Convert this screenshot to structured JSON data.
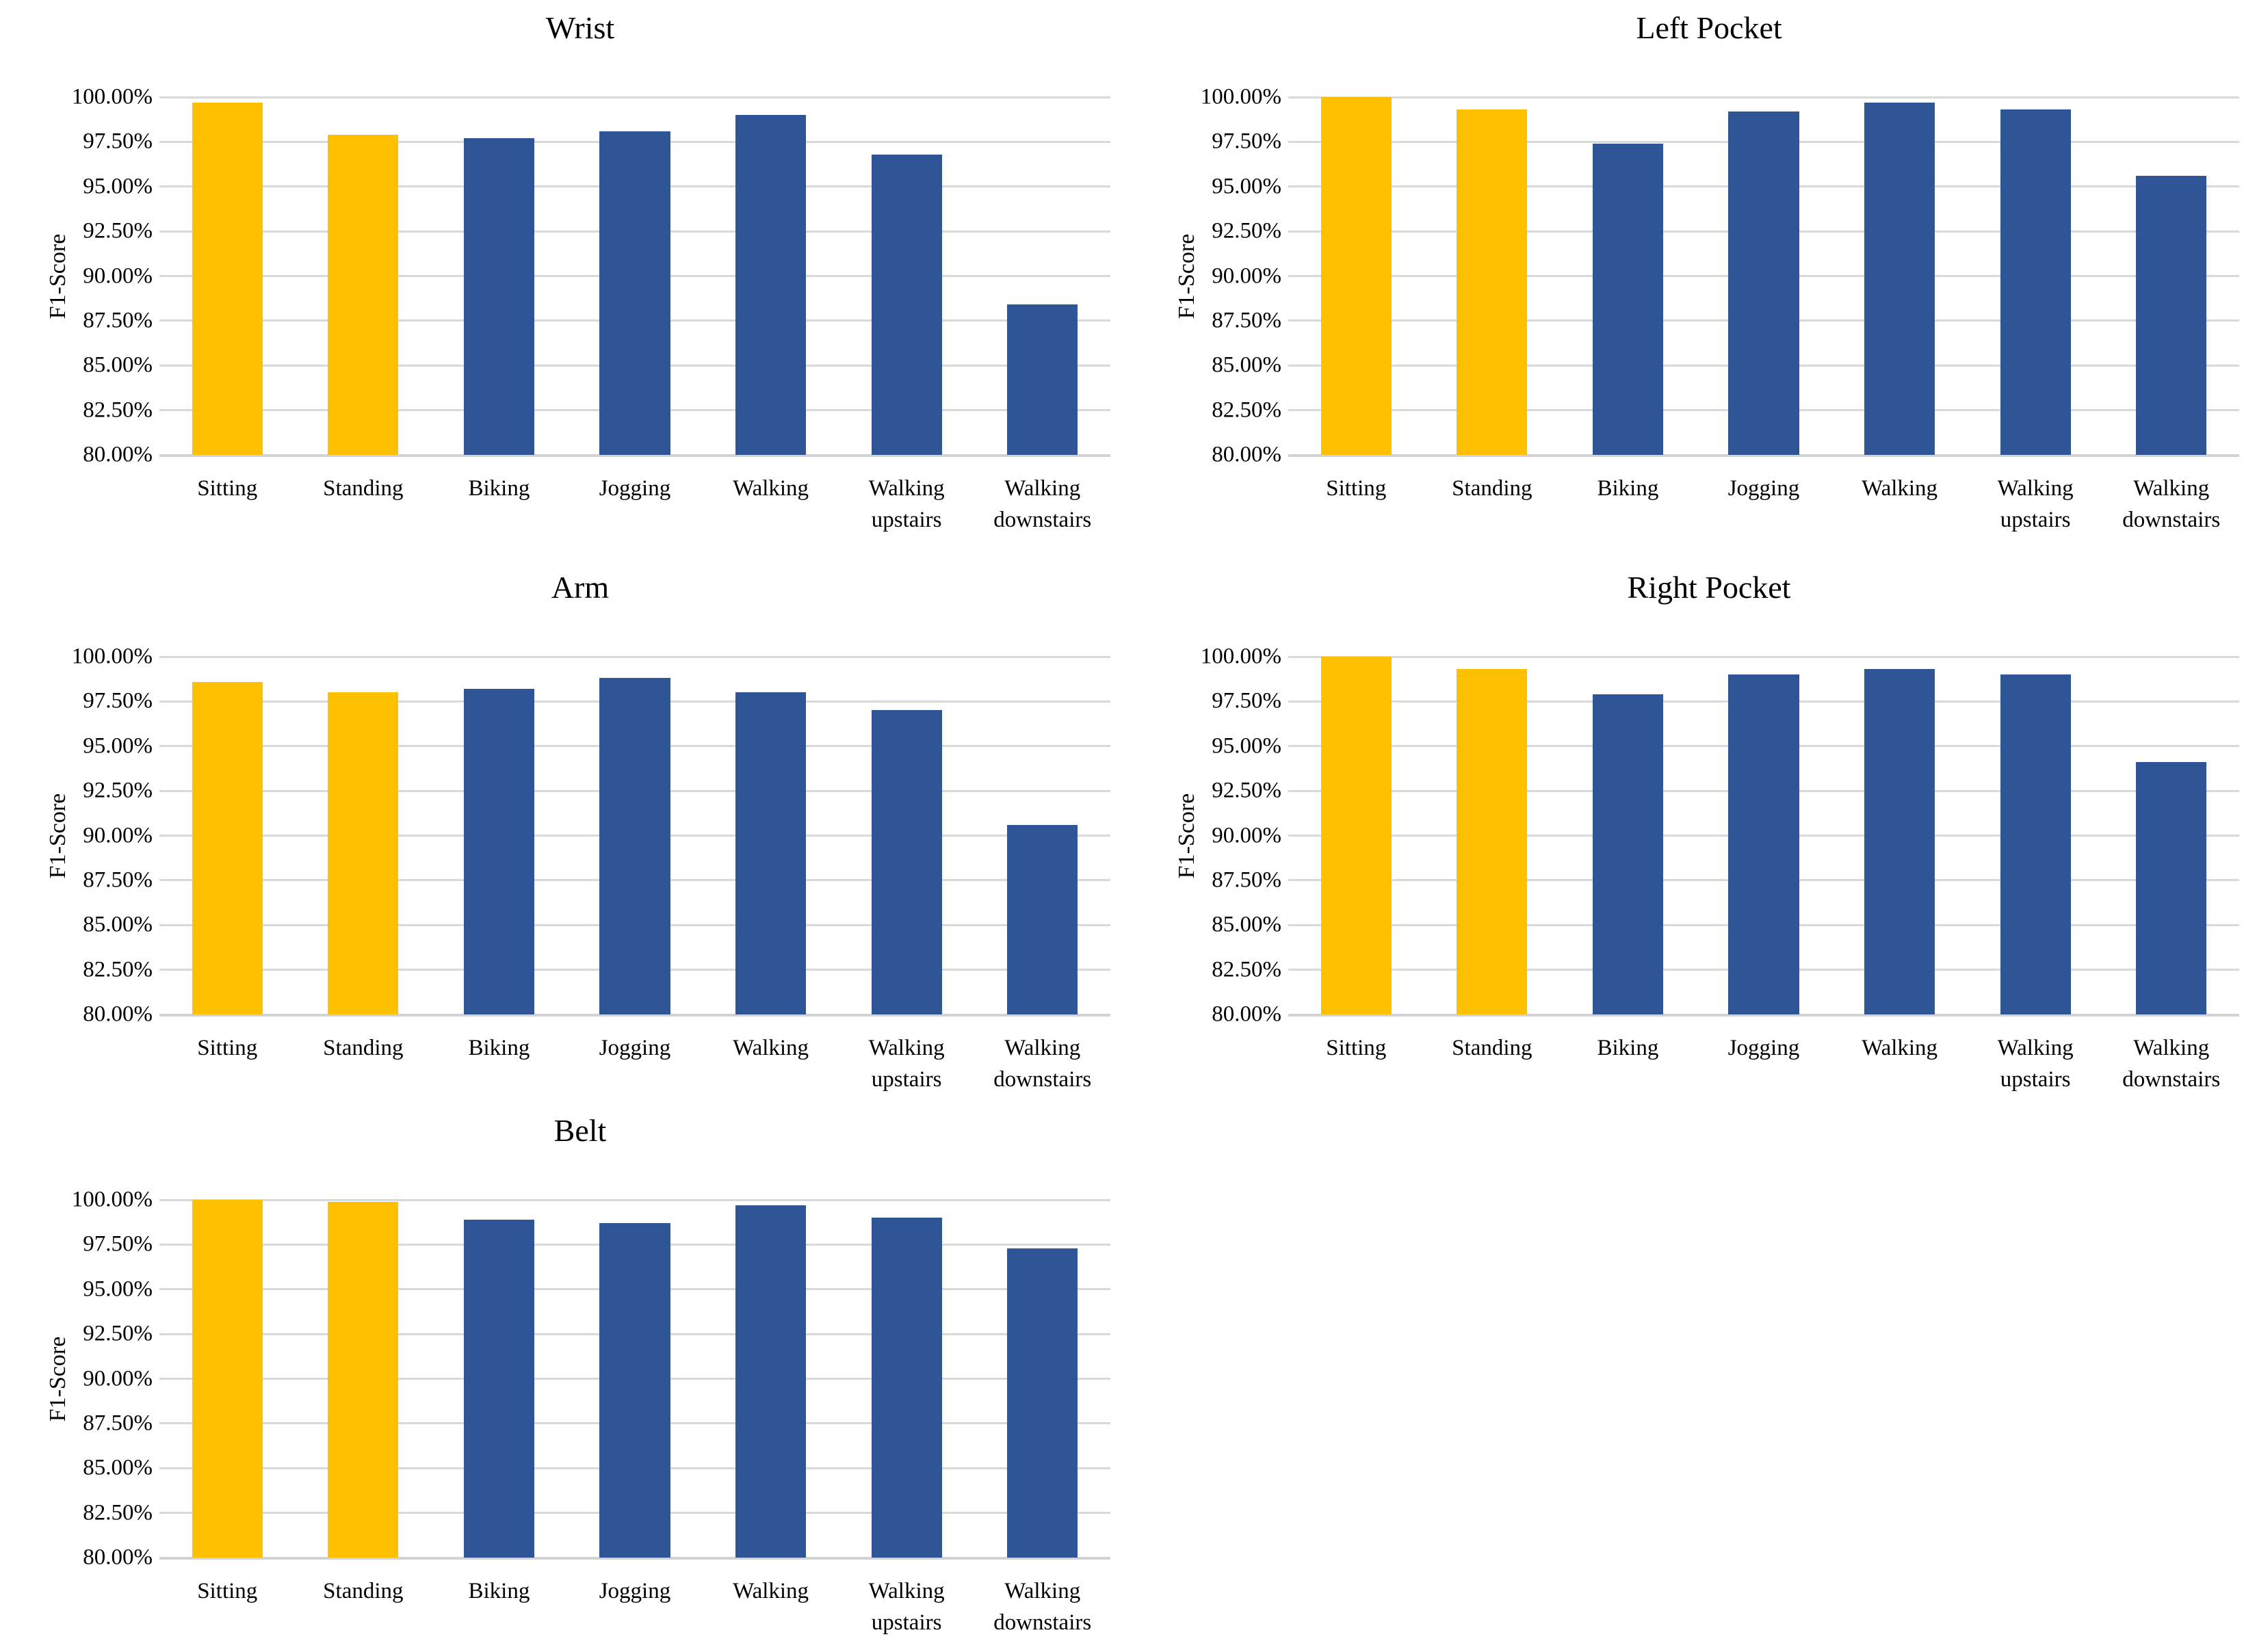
{
  "figure": {
    "description": "Five bar charts showing F1-Score per activity for different device placements",
    "background": "#FFFFFF",
    "grid_layout": {
      "rows": 3,
      "cols": 2,
      "empty_cells": [
        "row3-col2"
      ]
    }
  },
  "colors": {
    "highlight_bar": "#FFC000",
    "default_bar": "#2F5597",
    "gridline": "#D9D9D9",
    "axis_line": "#D3D3D3",
    "text": "#000000"
  },
  "axis": {
    "ylabel": "F1-Score",
    "tick_labels": [
      "100.00%",
      "97.50%",
      "95.00%",
      "92.50%",
      "90.00%",
      "87.50%",
      "85.00%",
      "82.50%",
      "80.00%"
    ]
  },
  "categories": [
    "Sitting",
    "Standing",
    "Biking",
    "Jogging",
    "Walking",
    "Walking upstairs",
    "Walking downstairs"
  ],
  "chart_data": [
    {
      "type": "bar",
      "title": "Wrist",
      "ylabel": "F1-Score",
      "ylim": [
        80,
        100
      ],
      "ytick_step": 2.5,
      "grid": true,
      "legend": "none",
      "categories": [
        "Sitting",
        "Standing",
        "Biking",
        "Jogging",
        "Walking",
        "Walking upstairs",
        "Walking downstairs"
      ],
      "values": [
        99.7,
        97.9,
        97.7,
        98.1,
        99.0,
        96.8,
        88.4
      ],
      "highlight_indices": [
        0,
        1
      ],
      "highlight_color": "#FFC000",
      "bar_color": "#2F5597"
    },
    {
      "type": "bar",
      "title": "Left Pocket",
      "ylabel": "F1-Score",
      "ylim": [
        80,
        100
      ],
      "ytick_step": 2.5,
      "grid": true,
      "legend": "none",
      "categories": [
        "Sitting",
        "Standing",
        "Biking",
        "Jogging",
        "Walking",
        "Walking upstairs",
        "Walking downstairs"
      ],
      "values": [
        100.0,
        99.3,
        97.4,
        99.2,
        99.7,
        99.3,
        95.6
      ],
      "highlight_indices": [
        0,
        1
      ],
      "highlight_color": "#FFC000",
      "bar_color": "#2F5597"
    },
    {
      "type": "bar",
      "title": "Arm",
      "ylabel": "F1-Score",
      "ylim": [
        80,
        100
      ],
      "ytick_step": 2.5,
      "grid": true,
      "legend": "none",
      "categories": [
        "Sitting",
        "Standing",
        "Biking",
        "Jogging",
        "Walking",
        "Walking upstairs",
        "Walking downstairs"
      ],
      "values": [
        98.6,
        98.0,
        98.2,
        98.8,
        98.0,
        97.0,
        90.6
      ],
      "highlight_indices": [
        0,
        1
      ],
      "highlight_color": "#FFC000",
      "bar_color": "#2F5597"
    },
    {
      "type": "bar",
      "title": "Right Pocket",
      "ylabel": "F1-Score",
      "ylim": [
        80,
        100
      ],
      "ytick_step": 2.5,
      "grid": true,
      "legend": "none",
      "categories": [
        "Sitting",
        "Standing",
        "Biking",
        "Jogging",
        "Walking",
        "Walking upstairs",
        "Walking downstairs"
      ],
      "values": [
        100.0,
        99.3,
        97.9,
        99.0,
        99.3,
        99.0,
        94.1
      ],
      "highlight_indices": [
        0,
        1
      ],
      "highlight_color": "#FFC000",
      "bar_color": "#2F5597"
    },
    {
      "type": "bar",
      "title": "Belt",
      "ylabel": "F1-Score",
      "ylim": [
        80,
        100
      ],
      "ytick_step": 2.5,
      "grid": true,
      "legend": "none",
      "categories": [
        "Sitting",
        "Standing",
        "Biking",
        "Jogging",
        "Walking",
        "Walking upstairs",
        "Walking downstairs"
      ],
      "values": [
        100.0,
        99.9,
        98.9,
        98.7,
        99.7,
        99.0,
        97.3
      ],
      "highlight_indices": [
        0,
        1
      ],
      "highlight_color": "#FFC000",
      "bar_color": "#2F5597"
    }
  ]
}
